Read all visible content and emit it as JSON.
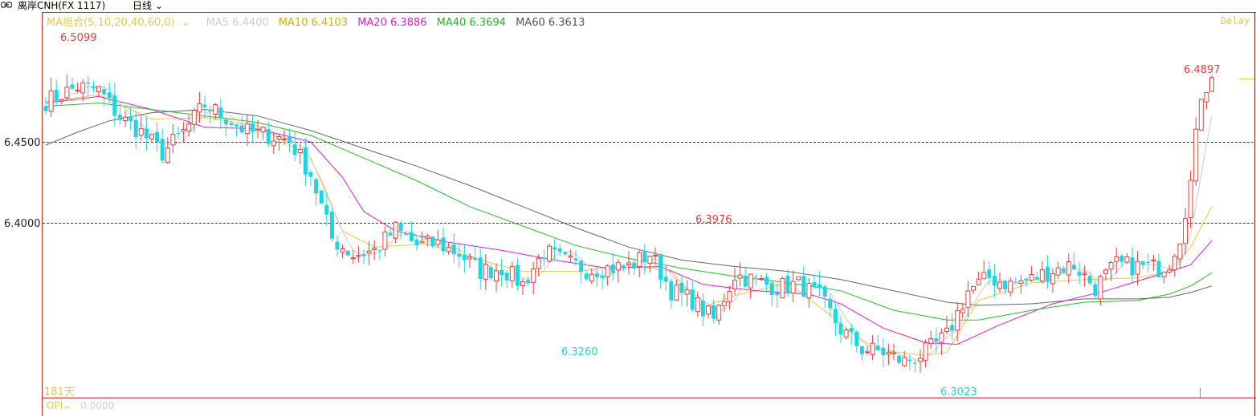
{
  "title_bar": {
    "symbol": "离岸CNH(FX 1117)",
    "period": "日线"
  },
  "legend": {
    "group": "MA组合(5,10,20,40,60,0)",
    "ma5": "MA5 6.4400",
    "ma10": "MA10 6.4103",
    "ma20": "MA20 6.3886",
    "ma40": "MA40 6.3694",
    "ma60": "MA60 6.3613"
  },
  "delay_label": "Delay",
  "count_label": "181天",
  "opi": {
    "label": "OPI",
    "value": "0.0000"
  },
  "colors": {
    "up": "#e34040",
    "down": "#1ed6e0",
    "ma5": "#cccccc",
    "ma10": "#e6c84a",
    "ma20": "#d21fd2",
    "ma40": "#29b829",
    "ma60": "#666666",
    "frame": "#c1272d"
  },
  "chart_data": {
    "type": "candlestick",
    "days": 181,
    "y_ticks": [
      "6.4500",
      "6.4000"
    ],
    "annotations": {
      "high": "6.5099",
      "mid_high": "6.3976",
      "low1": "6.3260",
      "low2": "6.3023",
      "last": "6.4897"
    },
    "points": [
      [
        0,
        6.475
      ],
      [
        6,
        6.484
      ],
      [
        10,
        6.482
      ],
      [
        14,
        6.465
      ],
      [
        18,
        6.456
      ],
      [
        22,
        6.443
      ],
      [
        26,
        6.456
      ],
      [
        30,
        6.473
      ],
      [
        34,
        6.465
      ],
      [
        38,
        6.456
      ],
      [
        42,
        6.454
      ],
      [
        46,
        6.451
      ],
      [
        50,
        6.43
      ],
      [
        54,
        6.39
      ],
      [
        58,
        6.38
      ],
      [
        62,
        6.383
      ],
      [
        66,
        6.396
      ],
      [
        70,
        6.386
      ],
      [
        74,
        6.387
      ],
      [
        78,
        6.381
      ],
      [
        82,
        6.37
      ],
      [
        86,
        6.372
      ],
      [
        90,
        6.362
      ],
      [
        94,
        6.382
      ],
      [
        98,
        6.376
      ],
      [
        102,
        6.371
      ],
      [
        106,
        6.372
      ],
      [
        110,
        6.373
      ],
      [
        114,
        6.381
      ],
      [
        118,
        6.358
      ],
      [
        122,
        6.352
      ],
      [
        126,
        6.34
      ],
      [
        130,
        6.368
      ],
      [
        134,
        6.364
      ],
      [
        138,
        6.36
      ],
      [
        142,
        6.362
      ],
      [
        146,
        6.354
      ],
      [
        150,
        6.334
      ],
      [
        154,
        6.322
      ],
      [
        158,
        6.32
      ],
      [
        162,
        6.314
      ],
      [
        166,
        6.32
      ],
      [
        170,
        6.33
      ],
      [
        174,
        6.358
      ],
      [
        178,
        6.366
      ],
      [
        182,
        6.362
      ],
      [
        186,
        6.365
      ],
      [
        190,
        6.371
      ],
      [
        194,
        6.374
      ],
      [
        198,
        6.36
      ],
      [
        202,
        6.374
      ],
      [
        206,
        6.373
      ],
      [
        210,
        6.372
      ],
      [
        212,
        6.376
      ],
      [
        214,
        6.392
      ],
      [
        216,
        6.425
      ],
      [
        218,
        6.48
      ],
      [
        220,
        6.4897
      ]
    ],
    "ma_lines": {
      "ma10": [
        [
          0,
          6.475
        ],
        [
          10,
          6.479
        ],
        [
          20,
          6.464
        ],
        [
          30,
          6.465
        ],
        [
          40,
          6.46
        ],
        [
          50,
          6.44
        ],
        [
          56,
          6.395
        ],
        [
          62,
          6.385
        ],
        [
          72,
          6.387
        ],
        [
          82,
          6.377
        ],
        [
          90,
          6.37
        ],
        [
          100,
          6.37
        ],
        [
          110,
          6.374
        ],
        [
          118,
          6.37
        ],
        [
          124,
          6.348
        ],
        [
          130,
          6.355
        ],
        [
          140,
          6.363
        ],
        [
          148,
          6.343
        ],
        [
          156,
          6.322
        ],
        [
          166,
          6.318
        ],
        [
          170,
          6.32
        ],
        [
          176,
          6.352
        ],
        [
          186,
          6.363
        ],
        [
          196,
          6.365
        ],
        [
          206,
          6.366
        ],
        [
          212,
          6.37
        ],
        [
          216,
          6.385
        ],
        [
          220,
          6.41
        ]
      ],
      "ma20": [
        [
          0,
          6.474
        ],
        [
          10,
          6.478
        ],
        [
          20,
          6.47
        ],
        [
          30,
          6.459
        ],
        [
          40,
          6.458
        ],
        [
          50,
          6.45
        ],
        [
          56,
          6.428
        ],
        [
          60,
          6.407
        ],
        [
          66,
          6.395
        ],
        [
          76,
          6.388
        ],
        [
          86,
          6.383
        ],
        [
          96,
          6.377
        ],
        [
          106,
          6.372
        ],
        [
          116,
          6.373
        ],
        [
          124,
          6.362
        ],
        [
          134,
          6.358
        ],
        [
          144,
          6.356
        ],
        [
          150,
          6.35
        ],
        [
          158,
          6.335
        ],
        [
          166,
          6.326
        ],
        [
          172,
          6.325
        ],
        [
          180,
          6.337
        ],
        [
          190,
          6.35
        ],
        [
          200,
          6.358
        ],
        [
          210,
          6.368
        ],
        [
          216,
          6.374
        ],
        [
          220,
          6.389
        ]
      ],
      "ma40": [
        [
          0,
          6.472
        ],
        [
          10,
          6.474
        ],
        [
          20,
          6.47
        ],
        [
          30,
          6.466
        ],
        [
          40,
          6.462
        ],
        [
          50,
          6.454
        ],
        [
          60,
          6.44
        ],
        [
          70,
          6.426
        ],
        [
          80,
          6.41
        ],
        [
          90,
          6.398
        ],
        [
          100,
          6.386
        ],
        [
          110,
          6.378
        ],
        [
          120,
          6.372
        ],
        [
          130,
          6.367
        ],
        [
          140,
          6.363
        ],
        [
          150,
          6.358
        ],
        [
          160,
          6.346
        ],
        [
          170,
          6.34
        ],
        [
          176,
          6.34
        ],
        [
          186,
          6.346
        ],
        [
          196,
          6.351
        ],
        [
          206,
          6.352
        ],
        [
          212,
          6.356
        ],
        [
          216,
          6.361
        ],
        [
          220,
          6.369
        ]
      ],
      "ma60": [
        [
          0,
          6.448
        ],
        [
          6,
          6.456
        ],
        [
          12,
          6.463
        ],
        [
          20,
          6.468
        ],
        [
          30,
          6.47
        ],
        [
          40,
          6.466
        ],
        [
          50,
          6.457
        ],
        [
          60,
          6.446
        ],
        [
          70,
          6.435
        ],
        [
          80,
          6.423
        ],
        [
          90,
          6.41
        ],
        [
          100,
          6.397
        ],
        [
          110,
          6.385
        ],
        [
          120,
          6.377
        ],
        [
          130,
          6.373
        ],
        [
          140,
          6.37
        ],
        [
          150,
          6.365
        ],
        [
          160,
          6.358
        ],
        [
          170,
          6.351
        ],
        [
          176,
          6.349
        ],
        [
          186,
          6.35
        ],
        [
          196,
          6.353
        ],
        [
          206,
          6.353
        ],
        [
          212,
          6.354
        ],
        [
          216,
          6.357
        ],
        [
          220,
          6.361
        ]
      ]
    }
  }
}
